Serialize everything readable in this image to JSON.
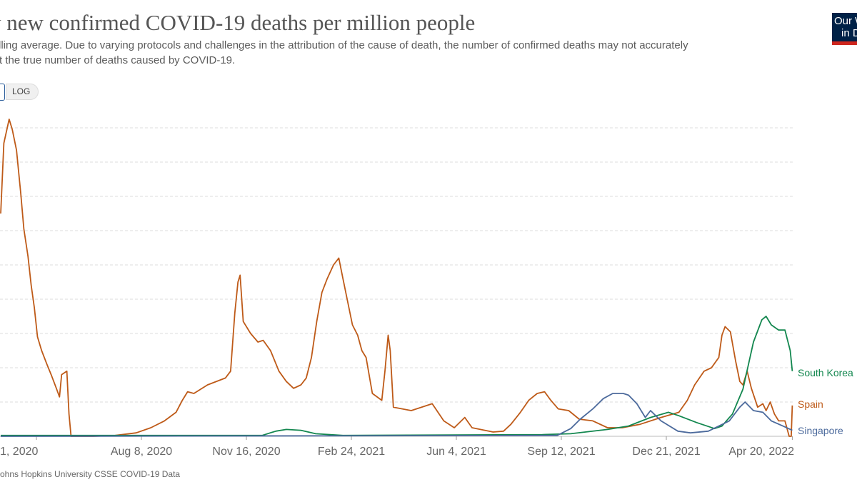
{
  "header": {
    "title": "y new confirmed COVID-19 deaths per million people",
    "subtitle_line1": "lling average. Due to varying protocols and challenges in the attribution of the cause of death, the number of confirmed deaths may not accurately",
    "subtitle_line2": "t the true number of deaths caused by COVID-19.",
    "logo_text": "Our World in Data",
    "log_button": "LOG"
  },
  "footer": {
    "source": "ohns Hopkins University CSSE COVID-19 Data"
  },
  "colors": {
    "spain": "#be5a18",
    "south_korea": "#13874f",
    "singapore": "#4c6a9c",
    "grid": "#dddddd"
  },
  "chart_data": {
    "type": "line",
    "title": "y new confirmed COVID-19 deaths per million people",
    "xlabel": "",
    "ylabel": "",
    "x_ticks": [
      {
        "date": "2020-04-30",
        "label": "1, 2020"
      },
      {
        "date": "2020-08-08",
        "label": "Aug 8, 2020"
      },
      {
        "date": "2020-11-16",
        "label": "Nov 16, 2020"
      },
      {
        "date": "2021-02-24",
        "label": "Feb 24, 2021"
      },
      {
        "date": "2021-06-04",
        "label": "Jun 4, 2021"
      },
      {
        "date": "2021-09-12",
        "label": "Sep 12, 2021"
      },
      {
        "date": "2021-12-21",
        "label": "Dec 21, 2021"
      },
      {
        "date": "2022-04-20",
        "label": "Apr 20, 2022"
      }
    ],
    "y_gridlines": [
      0,
      2,
      4,
      6,
      8,
      10,
      12,
      14,
      16,
      18
    ],
    "grid": true,
    "legend": "right-end labels",
    "series": [
      {
        "name": "Spain",
        "color": "#be5a18",
        "points": [
          [
            "2020-03-27",
            13.0
          ],
          [
            "2020-03-30",
            17.1
          ],
          [
            "2020-04-04",
            18.5
          ],
          [
            "2020-04-07",
            17.9
          ],
          [
            "2020-04-11",
            16.7
          ],
          [
            "2020-04-15",
            14.2
          ],
          [
            "2020-04-18",
            12.1
          ],
          [
            "2020-04-22",
            10.5
          ],
          [
            "2020-04-25",
            8.8
          ],
          [
            "2020-04-28",
            7.5
          ],
          [
            "2020-05-01",
            5.8
          ],
          [
            "2020-05-05",
            5.0
          ],
          [
            "2020-05-10",
            4.2
          ],
          [
            "2020-05-14",
            3.6
          ],
          [
            "2020-05-19",
            2.8
          ],
          [
            "2020-05-22",
            2.3
          ],
          [
            "2020-05-24",
            3.6
          ],
          [
            "2020-05-29",
            3.8
          ],
          [
            "2020-05-31",
            1.3
          ],
          [
            "2020-06-02",
            0.0
          ],
          [
            "2020-06-23",
            0.0
          ],
          [
            "2020-07-14",
            0.05
          ],
          [
            "2020-08-03",
            0.2
          ],
          [
            "2020-08-17",
            0.5
          ],
          [
            "2020-08-30",
            0.9
          ],
          [
            "2020-09-10",
            1.4
          ],
          [
            "2020-09-16",
            2.1
          ],
          [
            "2020-09-21",
            2.6
          ],
          [
            "2020-09-27",
            2.5
          ],
          [
            "2020-10-10",
            3.0
          ],
          [
            "2020-10-27",
            3.4
          ],
          [
            "2020-11-01",
            3.8
          ],
          [
            "2020-11-05",
            7.2
          ],
          [
            "2020-11-08",
            9.0
          ],
          [
            "2020-11-10",
            9.4
          ],
          [
            "2020-11-13",
            6.7
          ],
          [
            "2020-11-20",
            6.0
          ],
          [
            "2020-11-27",
            5.5
          ],
          [
            "2020-12-02",
            5.6
          ],
          [
            "2020-12-09",
            5.0
          ],
          [
            "2020-12-17",
            3.8
          ],
          [
            "2020-12-24",
            3.2
          ],
          [
            "2020-12-31",
            2.8
          ],
          [
            "2021-01-07",
            3.0
          ],
          [
            "2021-01-12",
            3.4
          ],
          [
            "2021-01-17",
            4.6
          ],
          [
            "2021-01-22",
            6.7
          ],
          [
            "2021-01-27",
            8.4
          ],
          [
            "2021-02-01",
            9.2
          ],
          [
            "2021-02-07",
            10.0
          ],
          [
            "2021-02-12",
            10.4
          ],
          [
            "2021-02-16",
            9.2
          ],
          [
            "2021-02-20",
            8.0
          ],
          [
            "2021-02-25",
            6.5
          ],
          [
            "2021-03-02",
            5.9
          ],
          [
            "2021-03-06",
            5.0
          ],
          [
            "2021-03-10",
            4.6
          ],
          [
            "2021-03-16",
            2.5
          ],
          [
            "2021-03-25",
            2.1
          ],
          [
            "2021-03-28",
            3.8
          ],
          [
            "2021-03-31",
            5.9
          ],
          [
            "2021-04-02",
            5.0
          ],
          [
            "2021-04-05",
            1.7
          ],
          [
            "2021-04-22",
            1.5
          ],
          [
            "2021-05-12",
            1.9
          ],
          [
            "2021-05-23",
            0.9
          ],
          [
            "2021-06-02",
            0.5
          ],
          [
            "2021-06-12",
            1.1
          ],
          [
            "2021-06-19",
            0.5
          ],
          [
            "2021-07-09",
            0.25
          ],
          [
            "2021-07-19",
            0.3
          ],
          [
            "2021-07-26",
            0.7
          ],
          [
            "2021-08-04",
            1.4
          ],
          [
            "2021-08-12",
            2.1
          ],
          [
            "2021-08-20",
            2.5
          ],
          [
            "2021-08-27",
            2.6
          ],
          [
            "2021-09-02",
            2.1
          ],
          [
            "2021-09-09",
            1.6
          ],
          [
            "2021-09-19",
            1.5
          ],
          [
            "2021-09-29",
            1.0
          ],
          [
            "2021-10-12",
            0.9
          ],
          [
            "2021-10-26",
            0.5
          ],
          [
            "2021-11-09",
            0.5
          ],
          [
            "2021-11-26",
            0.7
          ],
          [
            "2021-12-16",
            1.1
          ],
          [
            "2022-01-02",
            1.4
          ],
          [
            "2022-01-10",
            2.1
          ],
          [
            "2022-01-17",
            3.0
          ],
          [
            "2022-01-26",
            3.8
          ],
          [
            "2022-02-02",
            4.0
          ],
          [
            "2022-02-09",
            4.6
          ],
          [
            "2022-02-12",
            5.9
          ],
          [
            "2022-02-15",
            6.4
          ],
          [
            "2022-02-20",
            6.1
          ],
          [
            "2022-02-25",
            4.4
          ],
          [
            "2022-03-01",
            3.2
          ],
          [
            "2022-03-04",
            3.0
          ],
          [
            "2022-03-08",
            3.8
          ],
          [
            "2022-03-12",
            2.8
          ],
          [
            "2022-03-18",
            1.7
          ],
          [
            "2022-03-23",
            1.9
          ],
          [
            "2022-03-26",
            1.5
          ],
          [
            "2022-03-30",
            2.0
          ],
          [
            "2022-04-03",
            1.3
          ],
          [
            "2022-04-07",
            0.9
          ],
          [
            "2022-04-13",
            0.9
          ],
          [
            "2022-04-17",
            0.0
          ],
          [
            "2022-04-19",
            0.0
          ],
          [
            "2022-04-20",
            1.8
          ]
        ]
      },
      {
        "name": "South Korea",
        "color": "#13874f",
        "points": [
          [
            "2020-03-27",
            0.05
          ],
          [
            "2020-12-01",
            0.05
          ],
          [
            "2020-12-14",
            0.3
          ],
          [
            "2020-12-24",
            0.4
          ],
          [
            "2021-01-07",
            0.35
          ],
          [
            "2021-01-21",
            0.15
          ],
          [
            "2021-02-16",
            0.05
          ],
          [
            "2021-08-25",
            0.1
          ],
          [
            "2021-09-21",
            0.15
          ],
          [
            "2021-10-26",
            0.4
          ],
          [
            "2021-11-15",
            0.6
          ],
          [
            "2021-12-06",
            1.1
          ],
          [
            "2021-12-23",
            1.4
          ],
          [
            "2022-01-02",
            1.2
          ],
          [
            "2022-01-19",
            0.8
          ],
          [
            "2022-02-05",
            0.45
          ],
          [
            "2022-02-12",
            0.6
          ],
          [
            "2022-02-22",
            1.3
          ],
          [
            "2022-03-04",
            2.75
          ],
          [
            "2022-03-14",
            5.5
          ],
          [
            "2022-03-22",
            6.8
          ],
          [
            "2022-03-26",
            7.0
          ],
          [
            "2022-03-31",
            6.5
          ],
          [
            "2022-04-07",
            6.2
          ],
          [
            "2022-04-13",
            6.2
          ],
          [
            "2022-04-18",
            5.0
          ],
          [
            "2022-04-20",
            3.8
          ]
        ]
      },
      {
        "name": "Singapore",
        "color": "#4c6a9c",
        "points": [
          [
            "2020-03-27",
            0.0
          ],
          [
            "2021-09-08",
            0.05
          ],
          [
            "2021-09-21",
            0.45
          ],
          [
            "2021-09-30",
            1.0
          ],
          [
            "2021-10-12",
            1.6
          ],
          [
            "2021-10-22",
            2.2
          ],
          [
            "2021-10-31",
            2.5
          ],
          [
            "2021-11-10",
            2.5
          ],
          [
            "2021-11-15",
            2.4
          ],
          [
            "2021-11-23",
            1.9
          ],
          [
            "2021-12-01",
            1.1
          ],
          [
            "2021-12-06",
            1.5
          ],
          [
            "2021-12-16",
            0.9
          ],
          [
            "2022-01-01",
            0.3
          ],
          [
            "2022-01-13",
            0.2
          ],
          [
            "2022-01-30",
            0.3
          ],
          [
            "2022-02-19",
            0.9
          ],
          [
            "2022-03-01",
            1.7
          ],
          [
            "2022-03-06",
            2.0
          ],
          [
            "2022-03-14",
            1.5
          ],
          [
            "2022-03-23",
            1.4
          ],
          [
            "2022-03-31",
            0.9
          ],
          [
            "2022-04-11",
            0.6
          ],
          [
            "2022-04-20",
            0.35
          ]
        ]
      }
    ]
  }
}
